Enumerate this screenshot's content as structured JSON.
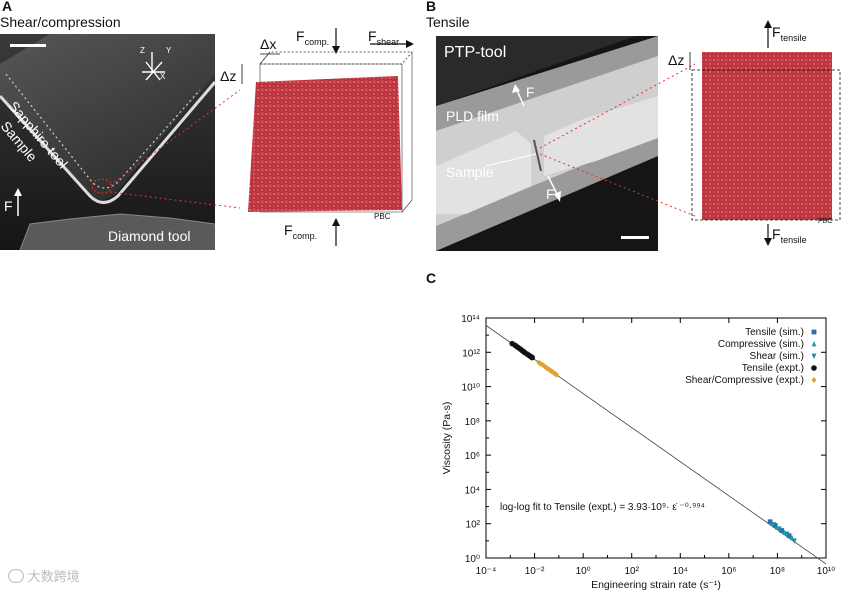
{
  "panelA": {
    "letter": "A",
    "title": "Shear/compression",
    "micrograph": {
      "sapphire_label": "Sapphire tool",
      "sample_label": "Sample",
      "diamond_label": "Diamond tool",
      "force_label": "F",
      "axes": {
        "z": "Z",
        "y": "Y",
        "x": "X"
      }
    },
    "sim": {
      "dx": "Δx",
      "dz": "Δz",
      "fcomp_top": "F",
      "fcomp_top_sub": "comp.",
      "fshear": "F",
      "fshear_sub": "shear",
      "fcomp_bottom": "F",
      "fcomp_bottom_sub": "comp.",
      "pbc": "PBC"
    }
  },
  "panelB": {
    "letter": "B",
    "title": "Tensile",
    "micrograph": {
      "ptp_label": "PTP-tool",
      "pld_label": "PLD film",
      "sample_label": "Sample",
      "force_top": "F",
      "force_bottom": "F"
    },
    "sim": {
      "dz": "Δz",
      "ftop": "F",
      "ftop_sub": "tensile",
      "fbottom": "F",
      "fbottom_sub": "tensile",
      "pbc": "PBC"
    }
  },
  "panelC": {
    "letter": "C",
    "watermark": "大数跨境",
    "chart_data": {
      "type": "scatter",
      "log_x": true,
      "log_y": true,
      "xlim": [
        0.0001,
        10000000000
      ],
      "ylim": [
        1,
        100000000000000
      ],
      "xlabel": "Engineering strain rate (s⁻¹)",
      "ylabel": "Viscosity (Pa·s)",
      "x_ticks": [
        "10⁻⁴",
        "10⁻²",
        "10⁰",
        "10²",
        "10⁴",
        "10⁶",
        "10⁸",
        "10¹⁰"
      ],
      "y_ticks": [
        "10⁰",
        "10²",
        "10⁴",
        "10⁶",
        "10⁸",
        "10¹⁰",
        "10¹²",
        "10¹⁴"
      ],
      "legend_position": "top-right",
      "annotation": "log-log fit to Tensile (expt.) = 3.93·10⁹· ε̇ ⁻⁰·⁹⁹⁴",
      "fit": {
        "a": 3930000000,
        "b": -0.994
      },
      "series": [
        {
          "name": "Tensile (sim.)",
          "marker": "square",
          "color": "#2a6fb0",
          "x": [
            50000000,
            80000000,
            150000000,
            300000000
          ],
          "y": [
            130,
            80,
            40,
            20
          ]
        },
        {
          "name": "Compressive (sim.)",
          "marker": "triangle-up",
          "color": "#20a0a8",
          "x": [
            60000000,
            100000000,
            200000000,
            400000000
          ],
          "y": [
            100,
            60,
            30,
            15
          ]
        },
        {
          "name": "Shear (sim.)",
          "marker": "triangle-down",
          "color": "#1a8fa0",
          "x": [
            70000000,
            120000000,
            250000000,
            500000000
          ],
          "y": [
            90,
            50,
            25,
            10
          ]
        },
        {
          "name": "Tensile (expt.)",
          "marker": "circle",
          "color": "#111111",
          "x": [
            0.0012,
            0.0016,
            0.002,
            0.0025,
            0.003,
            0.0035,
            0.004,
            0.005,
            0.006,
            0.007,
            0.008
          ],
          "y": [
            3200000000000,
            2500000000000,
            2000000000000,
            1600000000000,
            1300000000000,
            1100000000000,
            950000000000,
            780000000000,
            650000000000,
            560000000000,
            490000000000
          ]
        },
        {
          "name": "Shear/Compressive (expt.)",
          "marker": "diamond",
          "color": "#e0a030",
          "x": [
            0.015,
            0.018,
            0.022,
            0.026,
            0.03,
            0.035,
            0.04,
            0.045,
            0.05,
            0.06,
            0.07,
            0.08
          ],
          "y": [
            250000000000,
            210000000000,
            180000000000,
            150000000000,
            130000000000,
            110000000000,
            98000000000,
            87000000000,
            78000000000,
            65000000000,
            56000000000,
            49000000000
          ]
        }
      ]
    }
  }
}
